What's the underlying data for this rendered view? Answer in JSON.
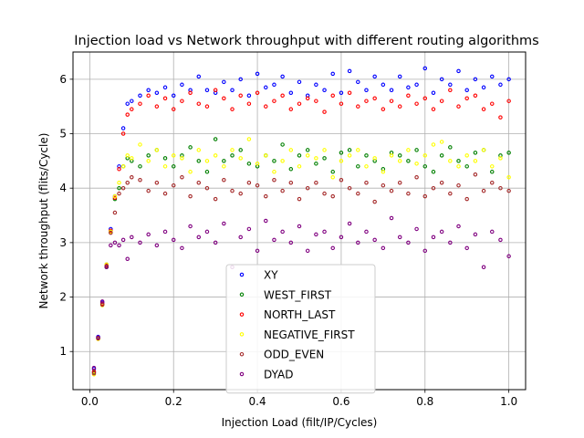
{
  "chart_data": {
    "type": "scatter",
    "title": "Injection load vs Network throughput with different routing algorithms",
    "xlabel": "Injection Load (filt/IP/Cycles)",
    "ylabel": "Network throughput (flits/Cycle)",
    "xlim": [
      -0.04,
      1.04
    ],
    "ylim": [
      0.3,
      6.5
    ],
    "xticks": [
      0.0,
      0.2,
      0.4,
      0.6,
      0.8,
      1.0
    ],
    "xtick_labels": [
      "0.0",
      "0.2",
      "0.4",
      "0.6",
      "0.8",
      "1.0"
    ],
    "yticks": [
      1,
      2,
      3,
      4,
      5,
      6
    ],
    "ytick_labels": [
      "1",
      "2",
      "3",
      "4",
      "5",
      "6"
    ],
    "grid": true,
    "legend_position": "bottom-center",
    "series": [
      {
        "name": "XY",
        "color": "#0000ff",
        "x": [
          0.01,
          0.02,
          0.03,
          0.04,
          0.05,
          0.06,
          0.07,
          0.08,
          0.09,
          0.1,
          0.12,
          0.14,
          0.16,
          0.18,
          0.2,
          0.22,
          0.24,
          0.26,
          0.28,
          0.3,
          0.32,
          0.34,
          0.36,
          0.38,
          0.4,
          0.42,
          0.44,
          0.46,
          0.48,
          0.5,
          0.52,
          0.54,
          0.56,
          0.58,
          0.6,
          0.62,
          0.64,
          0.66,
          0.68,
          0.7,
          0.72,
          0.74,
          0.76,
          0.78,
          0.8,
          0.82,
          0.84,
          0.86,
          0.88,
          0.9,
          0.92,
          0.94,
          0.96,
          0.98,
          1.0
        ],
        "y": [
          0.68,
          1.27,
          1.9,
          2.6,
          3.25,
          3.85,
          4.4,
          5.1,
          5.55,
          5.6,
          5.7,
          5.8,
          5.75,
          5.85,
          5.7,
          5.9,
          5.8,
          6.05,
          5.8,
          5.75,
          5.95,
          5.8,
          6.0,
          5.7,
          6.1,
          5.85,
          5.9,
          6.05,
          5.75,
          5.95,
          5.7,
          5.9,
          5.8,
          6.1,
          5.75,
          6.15,
          5.95,
          5.8,
          6.05,
          5.9,
          5.8,
          6.05,
          5.85,
          5.9,
          6.2,
          5.75,
          6.0,
          5.9,
          6.15,
          5.8,
          6.0,
          5.85,
          6.05,
          5.9,
          6.0
        ]
      },
      {
        "name": "WEST_FIRST",
        "color": "#008000",
        "x": [
          0.01,
          0.02,
          0.03,
          0.04,
          0.05,
          0.06,
          0.07,
          0.08,
          0.09,
          0.1,
          0.12,
          0.14,
          0.16,
          0.18,
          0.2,
          0.22,
          0.24,
          0.26,
          0.28,
          0.3,
          0.32,
          0.34,
          0.36,
          0.38,
          0.4,
          0.42,
          0.44,
          0.46,
          0.48,
          0.5,
          0.52,
          0.54,
          0.56,
          0.58,
          0.6,
          0.62,
          0.64,
          0.66,
          0.68,
          0.7,
          0.72,
          0.74,
          0.76,
          0.78,
          0.8,
          0.82,
          0.84,
          0.86,
          0.88,
          0.9,
          0.92,
          0.94,
          0.96,
          0.98,
          1.0
        ],
        "y": [
          0.62,
          1.24,
          1.86,
          2.55,
          3.2,
          3.8,
          4.0,
          4.4,
          4.55,
          4.5,
          4.4,
          4.6,
          4.7,
          4.55,
          4.4,
          4.6,
          4.75,
          4.5,
          4.3,
          4.9,
          4.5,
          4.6,
          4.7,
          4.45,
          4.4,
          4.6,
          4.5,
          4.8,
          4.35,
          4.6,
          4.7,
          4.45,
          4.55,
          4.3,
          4.65,
          4.7,
          4.4,
          4.6,
          4.5,
          4.35,
          4.65,
          4.6,
          4.5,
          4.7,
          4.4,
          4.3,
          4.6,
          4.75,
          4.5,
          4.4,
          4.65,
          4.7,
          4.3,
          4.6,
          4.65
        ]
      },
      {
        "name": "NORTH_LAST",
        "color": "#ff0000",
        "x": [
          0.01,
          0.02,
          0.03,
          0.04,
          0.05,
          0.06,
          0.07,
          0.08,
          0.09,
          0.1,
          0.12,
          0.14,
          0.16,
          0.18,
          0.2,
          0.22,
          0.24,
          0.26,
          0.28,
          0.3,
          0.32,
          0.34,
          0.36,
          0.38,
          0.4,
          0.42,
          0.44,
          0.46,
          0.48,
          0.5,
          0.52,
          0.54,
          0.56,
          0.58,
          0.6,
          0.62,
          0.64,
          0.66,
          0.68,
          0.7,
          0.72,
          0.74,
          0.76,
          0.78,
          0.8,
          0.82,
          0.84,
          0.86,
          0.88,
          0.9,
          0.92,
          0.94,
          0.96,
          0.98,
          1.0
        ],
        "y": [
          0.63,
          1.25,
          1.88,
          2.58,
          3.22,
          3.82,
          4.35,
          5.0,
          5.35,
          5.45,
          5.55,
          5.7,
          5.5,
          5.65,
          5.45,
          5.6,
          5.75,
          5.55,
          5.5,
          5.8,
          5.65,
          5.45,
          5.7,
          5.55,
          5.75,
          5.5,
          5.6,
          5.7,
          5.45,
          5.55,
          5.65,
          5.6,
          5.4,
          5.7,
          5.55,
          5.75,
          5.5,
          5.6,
          5.65,
          5.45,
          5.6,
          5.5,
          5.7,
          5.55,
          5.65,
          5.45,
          5.6,
          5.8,
          5.5,
          5.65,
          5.7,
          5.45,
          5.55,
          5.3,
          5.6
        ]
      },
      {
        "name": "NEGATIVE_FIRST",
        "color": "#ffff00",
        "x": [
          0.01,
          0.02,
          0.03,
          0.04,
          0.05,
          0.06,
          0.07,
          0.08,
          0.09,
          0.1,
          0.12,
          0.14,
          0.16,
          0.18,
          0.2,
          0.22,
          0.24,
          0.26,
          0.28,
          0.3,
          0.32,
          0.34,
          0.36,
          0.38,
          0.4,
          0.42,
          0.44,
          0.46,
          0.48,
          0.5,
          0.52,
          0.54,
          0.56,
          0.58,
          0.6,
          0.62,
          0.64,
          0.66,
          0.68,
          0.7,
          0.72,
          0.74,
          0.76,
          0.78,
          0.8,
          0.82,
          0.84,
          0.86,
          0.88,
          0.9,
          0.92,
          0.94,
          0.96,
          0.98,
          1.0
        ],
        "y": [
          0.58,
          1.23,
          1.85,
          2.6,
          3.2,
          3.85,
          4.1,
          4.4,
          4.6,
          4.55,
          4.8,
          4.5,
          4.7,
          4.4,
          4.6,
          4.55,
          4.3,
          4.7,
          4.5,
          4.6,
          4.4,
          4.7,
          4.55,
          4.9,
          4.45,
          4.6,
          4.3,
          4.5,
          4.7,
          4.4,
          4.6,
          4.55,
          4.7,
          4.2,
          4.5,
          4.6,
          4.7,
          4.4,
          4.55,
          4.3,
          4.6,
          4.5,
          4.7,
          4.45,
          4.6,
          4.8,
          4.85,
          4.5,
          4.4,
          4.6,
          4.5,
          4.7,
          4.4,
          4.55,
          4.2
        ]
      },
      {
        "name": "ODD_EVEN",
        "color": "#a52a2a",
        "x": [
          0.01,
          0.02,
          0.03,
          0.04,
          0.05,
          0.06,
          0.07,
          0.08,
          0.09,
          0.1,
          0.12,
          0.14,
          0.16,
          0.18,
          0.2,
          0.22,
          0.24,
          0.26,
          0.28,
          0.3,
          0.32,
          0.34,
          0.36,
          0.38,
          0.4,
          0.42,
          0.44,
          0.46,
          0.48,
          0.5,
          0.52,
          0.54,
          0.56,
          0.58,
          0.6,
          0.62,
          0.64,
          0.66,
          0.68,
          0.7,
          0.72,
          0.74,
          0.76,
          0.78,
          0.8,
          0.82,
          0.84,
          0.86,
          0.88,
          0.9,
          0.92,
          0.94,
          0.96,
          0.98,
          1.0
        ],
        "y": [
          0.6,
          1.24,
          1.86,
          2.57,
          3.18,
          3.55,
          3.9,
          4.0,
          4.1,
          4.2,
          4.15,
          3.95,
          4.1,
          3.9,
          4.05,
          4.2,
          3.85,
          4.1,
          4.0,
          3.8,
          4.15,
          3.95,
          3.9,
          4.1,
          4.05,
          3.85,
          4.15,
          3.95,
          4.1,
          3.8,
          4.0,
          4.1,
          3.9,
          3.85,
          4.15,
          4.0,
          3.9,
          4.1,
          3.75,
          4.05,
          3.95,
          4.1,
          3.9,
          4.2,
          3.85,
          4.0,
          4.1,
          3.9,
          4.05,
          3.8,
          4.25,
          3.95,
          4.1,
          4.0,
          3.95
        ]
      },
      {
        "name": "DYAD",
        "color": "#800080",
        "x": [
          0.01,
          0.02,
          0.03,
          0.04,
          0.05,
          0.06,
          0.07,
          0.08,
          0.09,
          0.1,
          0.12,
          0.14,
          0.16,
          0.18,
          0.2,
          0.22,
          0.24,
          0.26,
          0.28,
          0.3,
          0.32,
          0.34,
          0.36,
          0.38,
          0.4,
          0.42,
          0.44,
          0.46,
          0.48,
          0.5,
          0.52,
          0.54,
          0.56,
          0.58,
          0.6,
          0.62,
          0.64,
          0.66,
          0.68,
          0.7,
          0.72,
          0.74,
          0.76,
          0.78,
          0.8,
          0.82,
          0.84,
          0.86,
          0.88,
          0.9,
          0.92,
          0.94,
          0.96,
          0.98,
          1.0
        ],
        "y": [
          0.7,
          1.26,
          1.92,
          2.55,
          2.95,
          3.0,
          2.95,
          3.05,
          2.7,
          3.1,
          3.0,
          3.15,
          2.95,
          3.2,
          3.05,
          2.9,
          3.3,
          3.1,
          3.2,
          3.0,
          3.35,
          2.55,
          3.1,
          3.25,
          2.85,
          3.4,
          3.05,
          3.2,
          3.0,
          3.3,
          2.85,
          3.15,
          3.2,
          2.9,
          3.1,
          3.35,
          3.0,
          3.2,
          3.05,
          2.9,
          3.45,
          3.1,
          3.0,
          3.25,
          2.85,
          3.1,
          3.2,
          3.0,
          3.3,
          2.9,
          3.15,
          2.55,
          3.2,
          3.05,
          2.75
        ]
      }
    ]
  }
}
